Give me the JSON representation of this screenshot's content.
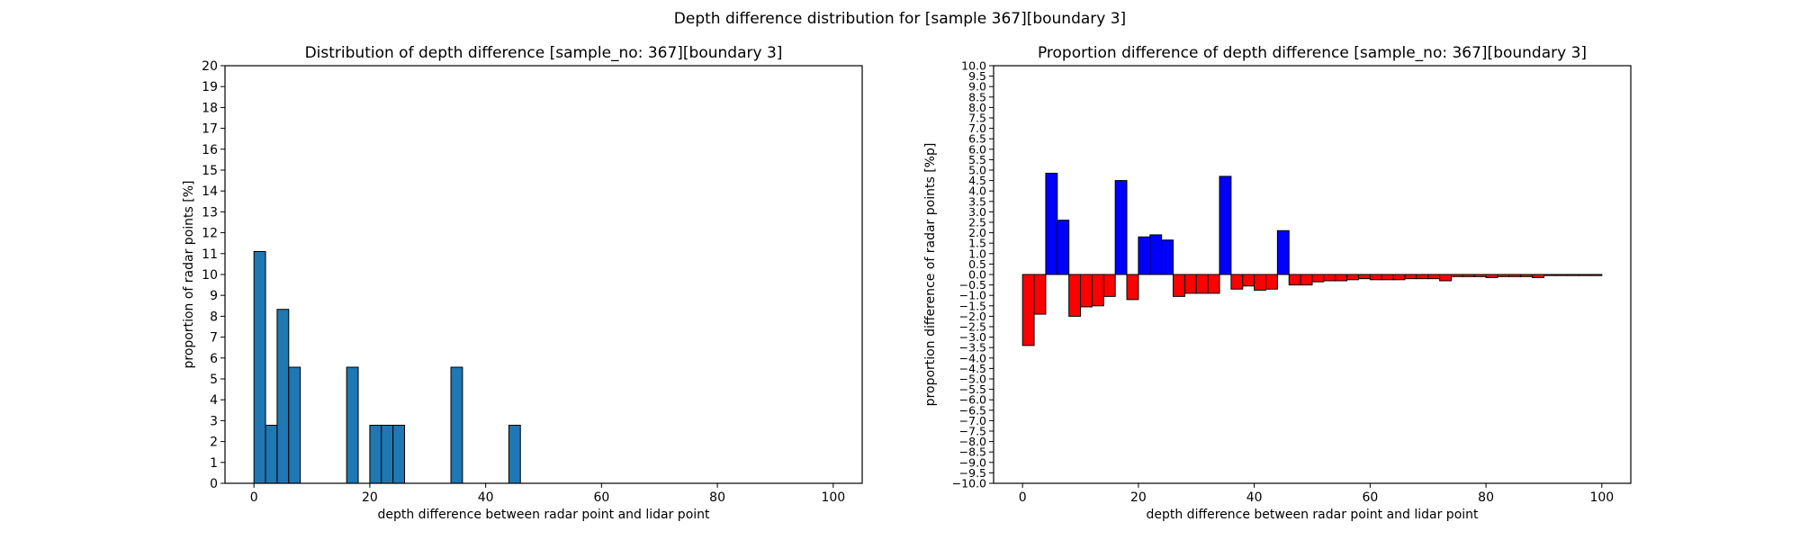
{
  "figure": {
    "suptitle": "Depth difference distribution for [sample 367][boundary 3]"
  },
  "chart_data": [
    {
      "type": "bar",
      "title": "Distribution of depth difference [sample_no: 367][boundary 3]",
      "xlabel": "depth difference between radar point and lidar point",
      "ylabel": "proportion of radar points [%]",
      "xlim": [
        -5,
        105
      ],
      "ylim": [
        0,
        20
      ],
      "xticks": [
        0,
        20,
        40,
        60,
        80,
        100
      ],
      "yticks": [
        0,
        1,
        2,
        3,
        4,
        5,
        6,
        7,
        8,
        9,
        10,
        11,
        12,
        13,
        14,
        15,
        16,
        17,
        18,
        19,
        20
      ],
      "bin_width": 2,
      "color": "#1f77b4",
      "edgecolor": "#000000",
      "bin_starts": [
        0,
        2,
        4,
        6,
        16,
        20,
        22,
        24,
        34,
        44
      ],
      "values": [
        11.1,
        2.78,
        8.33,
        5.56,
        5.56,
        2.78,
        2.78,
        2.78,
        5.56,
        2.78
      ]
    },
    {
      "type": "bar",
      "title": "Proportion difference of depth difference [sample_no: 367][boundary 3]",
      "xlabel": "depth difference between radar point and lidar point",
      "ylabel": "proportion difference of radar points [%p]",
      "xlim": [
        -5,
        105
      ],
      "ylim": [
        -10,
        10
      ],
      "xticks": [
        0,
        20,
        40,
        60,
        80,
        100
      ],
      "yticks": [
        -10.0,
        -9.5,
        -9.0,
        -8.5,
        -8.0,
        -7.5,
        -7.0,
        -6.5,
        -6.0,
        -5.5,
        -5.0,
        -4.5,
        -4.0,
        -3.5,
        -3.0,
        -2.5,
        -2.0,
        -1.5,
        -1.0,
        -0.5,
        0.0,
        0.5,
        1.0,
        1.5,
        2.0,
        2.5,
        3.0,
        3.5,
        4.0,
        4.5,
        5.0,
        5.5,
        6.0,
        6.5,
        7.0,
        7.5,
        8.0,
        8.5,
        9.0,
        9.5,
        10.0
      ],
      "bin_width": 2,
      "positive_color": "#0000ff",
      "negative_color": "#ff0000",
      "edgecolor": "#000000",
      "bin_starts": [
        0,
        2,
        4,
        6,
        8,
        10,
        12,
        14,
        16,
        18,
        20,
        22,
        24,
        26,
        28,
        30,
        32,
        34,
        36,
        38,
        40,
        42,
        44,
        46,
        48,
        50,
        52,
        54,
        56,
        58,
        60,
        62,
        64,
        66,
        68,
        70,
        72,
        74,
        76,
        78,
        80,
        82,
        84,
        86,
        88,
        90,
        92,
        94,
        96,
        98
      ],
      "values": [
        -3.4,
        -1.9,
        4.85,
        2.6,
        -2.0,
        -1.55,
        -1.5,
        -1.05,
        4.5,
        -1.2,
        1.8,
        1.9,
        1.65,
        -1.05,
        -0.9,
        -0.9,
        -0.9,
        4.7,
        -0.7,
        -0.55,
        -0.75,
        -0.7,
        2.1,
        -0.5,
        -0.5,
        -0.35,
        -0.3,
        -0.3,
        -0.25,
        -0.2,
        -0.25,
        -0.25,
        -0.25,
        -0.2,
        -0.2,
        -0.2,
        -0.3,
        -0.1,
        -0.1,
        -0.1,
        -0.15,
        -0.1,
        -0.1,
        -0.1,
        -0.15,
        -0.05,
        -0.05,
        -0.05,
        -0.05,
        -0.05
      ]
    }
  ]
}
